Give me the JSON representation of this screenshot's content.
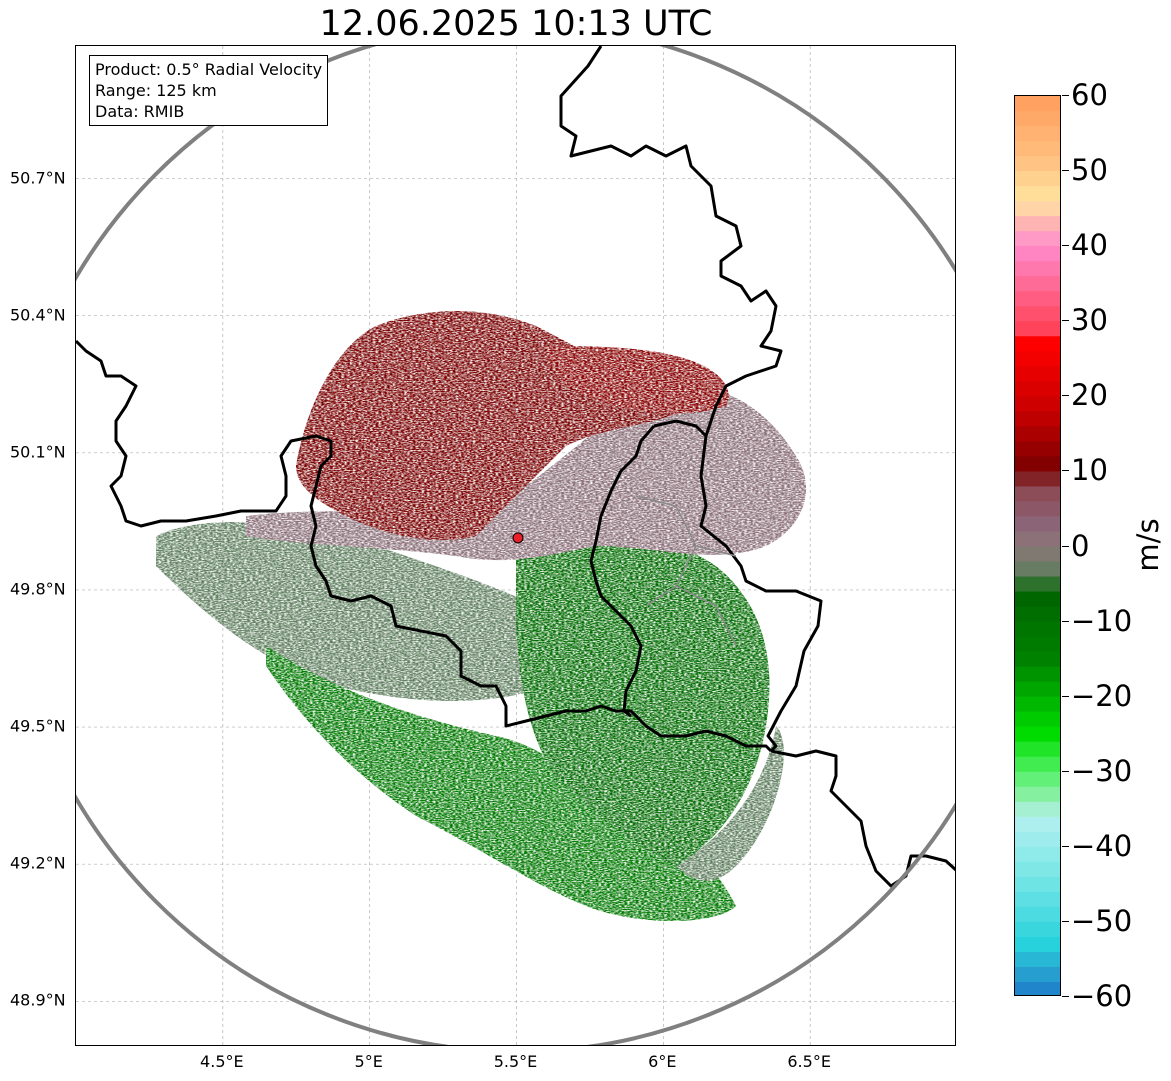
{
  "title": "12.06.2025 10:13 UTC",
  "info": {
    "product": "Product: 0.5° Radial Velocity",
    "range": "Range: 125 km",
    "data": "Data: RMIB"
  },
  "axes": {
    "lat_labels": [
      "50.7°N",
      "50.4°N",
      "50.1°N",
      "49.8°N",
      "49.5°N",
      "49.2°N",
      "48.9°N"
    ],
    "lat_values": [
      50.7,
      50.4,
      50.1,
      49.8,
      49.5,
      49.2,
      48.9
    ],
    "lon_labels": [
      "4.5°E",
      "5°E",
      "5.5°E",
      "6°E",
      "6.5°E"
    ],
    "lon_values": [
      4.5,
      5.0,
      5.5,
      6.0,
      6.5
    ],
    "lat_range": [
      48.8,
      50.99
    ],
    "lon_range": [
      4.0,
      7.0
    ]
  },
  "radar": {
    "site_lon": 5.505,
    "site_lat": 49.914,
    "range_km": 125,
    "site_color": "#e8202a"
  },
  "colorbar": {
    "unit": "m/s",
    "min": -60,
    "max": 60,
    "tick_values": [
      60,
      50,
      40,
      30,
      20,
      10,
      0,
      -10,
      -20,
      -30,
      -40,
      -50,
      -60
    ],
    "tick_labels": [
      "60",
      "50",
      "40",
      "30",
      "20",
      "10",
      "0",
      "−10",
      "−20",
      "−30",
      "−40",
      "−50",
      "−60"
    ],
    "stops": [
      {
        "v": 60,
        "c": "#ff9d5c"
      },
      {
        "v": 52,
        "c": "#ffbe7d"
      },
      {
        "v": 46,
        "c": "#ffe4a0"
      },
      {
        "v": 43,
        "c": "#ffb4b4"
      },
      {
        "v": 40,
        "c": "#ff8ccd"
      },
      {
        "v": 34,
        "c": "#ff648c"
      },
      {
        "v": 28,
        "c": "#ff3c50"
      },
      {
        "v": 27,
        "c": "#ff0000"
      },
      {
        "v": 18,
        "c": "#c80000"
      },
      {
        "v": 10,
        "c": "#780000"
      },
      {
        "v": 8,
        "c": "#8c4650"
      },
      {
        "v": 3,
        "c": "#8c6478"
      },
      {
        "v": 0,
        "c": "#8c7878"
      },
      {
        "v": -4,
        "c": "#5a7d5a"
      },
      {
        "v": -6,
        "c": "#006400"
      },
      {
        "v": -15,
        "c": "#008200"
      },
      {
        "v": -25,
        "c": "#00dc00"
      },
      {
        "v": -30,
        "c": "#50f064"
      },
      {
        "v": -34,
        "c": "#96f0b4"
      },
      {
        "v": -36,
        "c": "#b4f0f0"
      },
      {
        "v": -44,
        "c": "#78e6e6"
      },
      {
        "v": -53,
        "c": "#28d2dc"
      },
      {
        "v": -56,
        "c": "#28aad2"
      },
      {
        "v": -60,
        "c": "#1e78c8"
      }
    ]
  },
  "colors": {
    "range_ring": "#808080",
    "border": "#000000",
    "grid": "#b0b0b0",
    "inbound_green": "#007a00",
    "outbound_red": "#7a0000",
    "near_zero_mauve": "#8a6e78",
    "near_zero_sage": "#5f7f5f"
  }
}
